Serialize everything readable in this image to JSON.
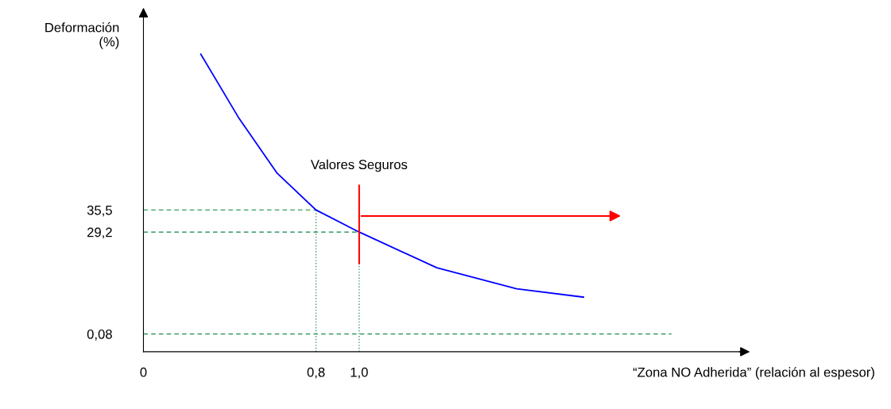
{
  "chart_data": {
    "type": "line",
    "xlabel": "“Zona NO Adherida” (relación al espesor)",
    "ylabel": "Deformación\n(%)",
    "x": [
      0.266,
      0.44,
      0.62,
      0.8,
      1.0,
      1.36,
      1.73,
      2.04
    ],
    "series": [
      {
        "color": "#0000ff",
        "values": [
          80,
          62,
          46,
          35.5,
          29.2,
          19,
          13,
          10.6
        ]
      }
    ],
    "xlim": [
      0,
      2.78
    ],
    "ylim": [
      -5,
      92
    ],
    "xticks": [
      0,
      {
        "value": 0.8,
        "label": "0,8"
      },
      {
        "value": 1.0,
        "label": "1,0"
      }
    ],
    "yticks": [
      {
        "value": 0.08,
        "label": "0,08"
      },
      {
        "value": 29.2,
        "label": "29,2"
      },
      {
        "value": 35.5,
        "label": "35,5"
      }
    ],
    "ref_lines": [
      {
        "axis": "y",
        "value": 35.5,
        "color": "#339966",
        "line_style": "dashed"
      },
      {
        "axis": "y",
        "value": 29.2,
        "color": "#339966",
        "line_style": "dashed"
      },
      {
        "axis": "y",
        "value": 0.08,
        "color": "#339966",
        "line_style": "dashed"
      },
      {
        "axis": "x",
        "value": 0.8,
        "color": "#339966",
        "line_style": "dotted"
      },
      {
        "axis": "x",
        "value": 1.0,
        "color": "#339966",
        "line_style": "dotted"
      },
      {
        "axis": "x",
        "value": 1.0,
        "color": "#ff0000",
        "line_style": "solid",
        "label": "Valores Seguros"
      }
    ],
    "grid": false,
    "marker": "none",
    "line_style": "solid"
  }
}
